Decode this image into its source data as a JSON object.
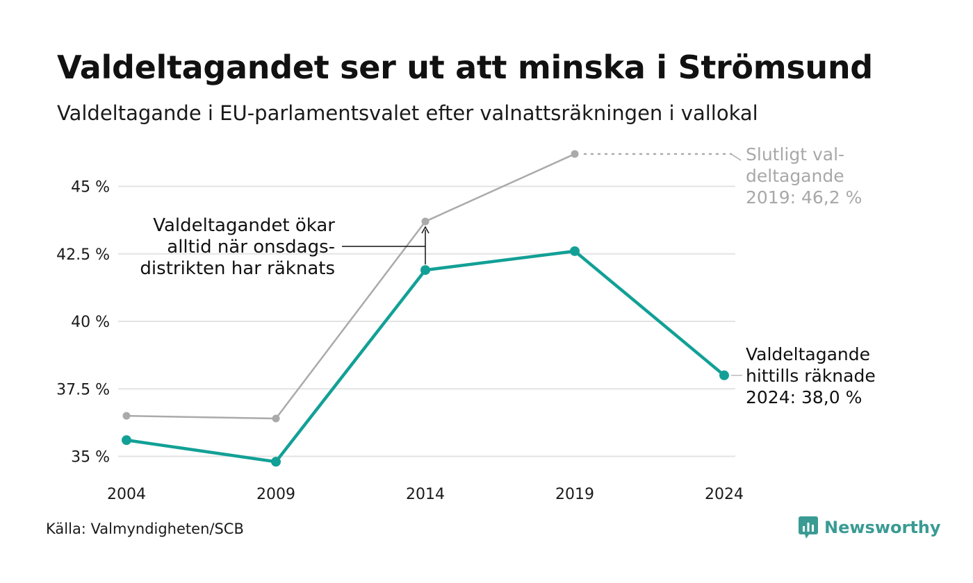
{
  "title": "Valdeltagandet ser ut att minska i Strömsund",
  "subtitle": "Valdeltagande i EU-parlamentsvalet efter valnattsräkningen i vallokal",
  "source": "Källa: Valmyndigheten/SCB",
  "brand": {
    "name": "Newsworthy",
    "icon": "newsworthy-logo-icon",
    "color": "#3a9b94"
  },
  "chart_data": {
    "type": "line",
    "x": [
      "2004",
      "2009",
      "2014",
      "2019",
      "2024"
    ],
    "ylim": [
      34.6,
      46.5
    ],
    "yticks": [
      35,
      37.5,
      40,
      42.5,
      45
    ],
    "ytick_labels": [
      "35 %",
      "37.5 %",
      "40 %",
      "42.5 %",
      "45 %"
    ],
    "grid": true,
    "series": [
      {
        "id": "final",
        "color": "#aaaaaa",
        "values": [
          36.5,
          36.4,
          43.7,
          46.2,
          null
        ]
      },
      {
        "id": "preliminary",
        "color": "#12a096",
        "values": [
          35.6,
          34.8,
          41.9,
          42.6,
          38.0
        ]
      }
    ],
    "annotations": {
      "final_label": [
        "Slutligt val-",
        "deltagande",
        "2019: 46,2 %"
      ],
      "preliminary_label": [
        "Valdeltagande",
        "hittills räknade",
        "2024: 38,0 %"
      ],
      "note": [
        "Valdeltagandet ökar",
        "alltid när onsdags-",
        "distrikten har räknats"
      ]
    }
  }
}
